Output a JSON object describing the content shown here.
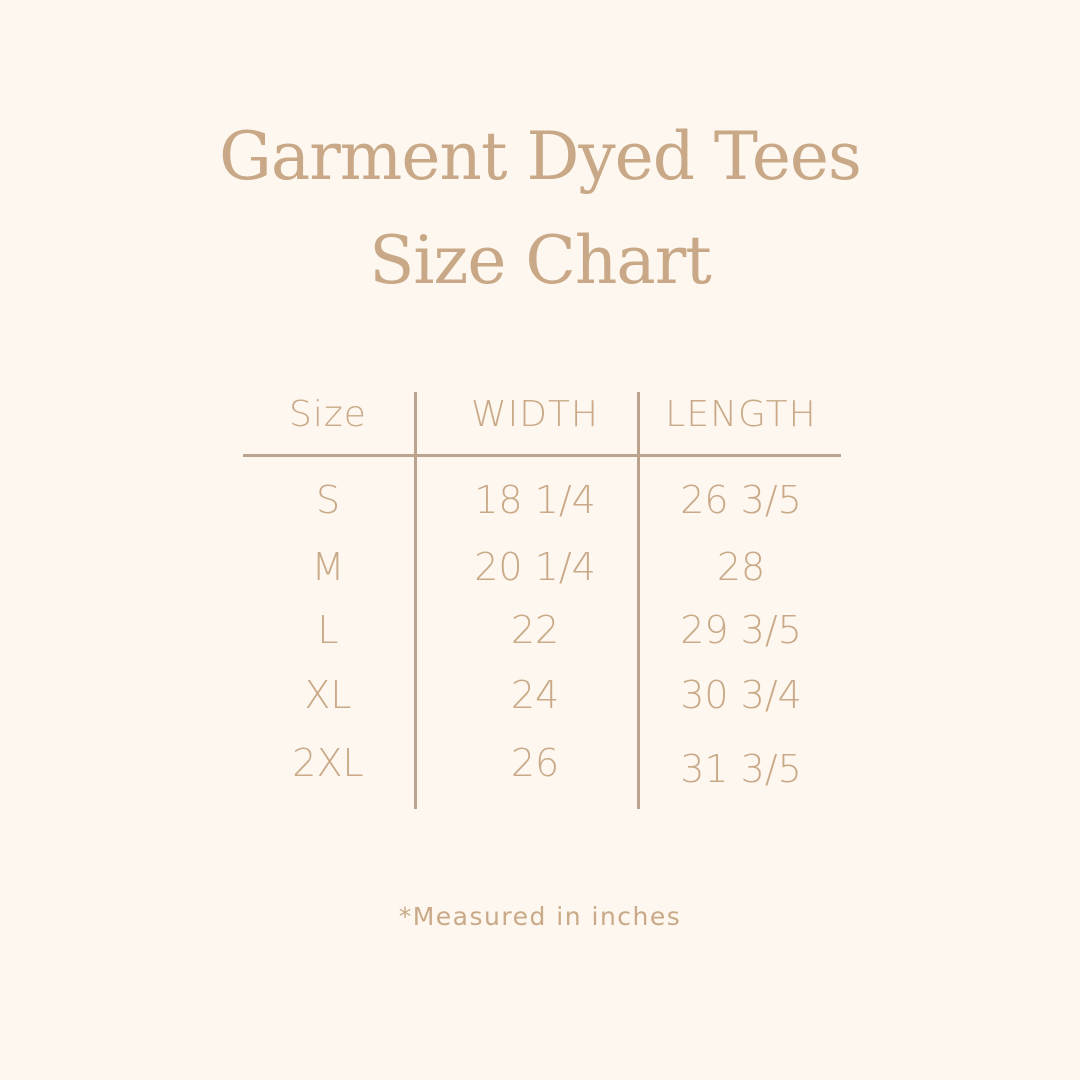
{
  "title_line1": "Garment Dyed Tees",
  "title_line2": "Size Chart",
  "footnote": "*Measured in inches",
  "colors": {
    "background": "#fdf7ef",
    "text": "#c9a987",
    "lines": "#bca38e"
  },
  "chart_data": {
    "type": "table",
    "title": "Garment Dyed Tees Size Chart",
    "columns": [
      "Size",
      "WIDTH",
      "LENGTH"
    ],
    "rows": [
      [
        "S",
        "18 1/4",
        "26 3/5"
      ],
      [
        "M",
        "20 1/4",
        "28"
      ],
      [
        "L",
        "22",
        "29 3/5"
      ],
      [
        "XL",
        "24",
        "30 3/4"
      ],
      [
        "2XL",
        "26",
        "31 3/5"
      ]
    ]
  }
}
